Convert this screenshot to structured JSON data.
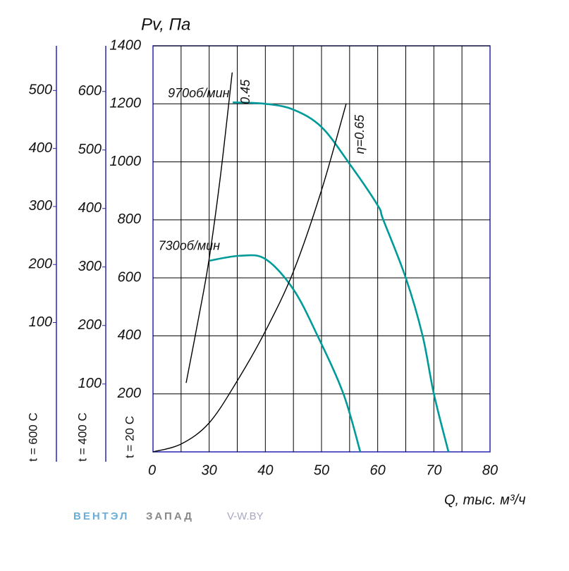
{
  "chart_data": {
    "type": "line",
    "y_label": "Pv, Па",
    "x_label": "Q, тыс. м³/ч",
    "origin_label": "0",
    "xlim": [
      20,
      80
    ],
    "xticks": [
      30,
      40,
      50,
      60,
      70,
      80
    ],
    "xgrid": [
      25,
      30,
      35,
      40,
      45,
      50,
      55,
      60,
      65,
      70,
      75
    ],
    "ylim": [
      0,
      1400
    ],
    "yticks": [
      200,
      400,
      600,
      800,
      1000,
      1200,
      1400
    ],
    "grid": true,
    "temp_label": "t = 20 C",
    "extra_axes": [
      {
        "label": "t = 400 C",
        "ylim": [
          -16,
          678
        ],
        "yticks": [
          100,
          200,
          300,
          400,
          500,
          600
        ]
      },
      {
        "label": "t = 600 C",
        "ylim": [
          -123,
          577
        ],
        "yticks": [
          100,
          200,
          300,
          400,
          500
        ]
      }
    ],
    "series": [
      {
        "name": "970об/мин",
        "color": "#009a9a",
        "x": [
          34.2,
          40,
          45,
          50,
          55,
          60,
          61,
          65,
          68,
          70,
          72.6
        ],
        "values": [
          1205,
          1200,
          1180,
          1120,
          993,
          850,
          800,
          600,
          400,
          200,
          0
        ]
      },
      {
        "name": "730об/мин",
        "color": "#009a9a",
        "x": [
          30,
          35.4,
          40,
          45,
          49.3,
          53.9,
          56.9
        ],
        "values": [
          659,
          676,
          665,
          560,
          400,
          200,
          0
        ]
      },
      {
        "name": "0.45",
        "color": "#000000",
        "x": [
          25.9,
          28,
          29.9,
          32,
          34.1
        ],
        "values": [
          238,
          450,
          654,
          950,
          1308
        ]
      },
      {
        "name": "η=0.65",
        "color": "#000000",
        "x": [
          20,
          25,
          30,
          35,
          40,
          45,
          50,
          54.4
        ],
        "values": [
          0,
          27,
          100,
          245,
          416,
          622,
          902,
          1201
        ]
      }
    ],
    "brand": "ВЕНТЭЛ",
    "brand2": "ЗАПАД",
    "site": "V-W.BY"
  }
}
